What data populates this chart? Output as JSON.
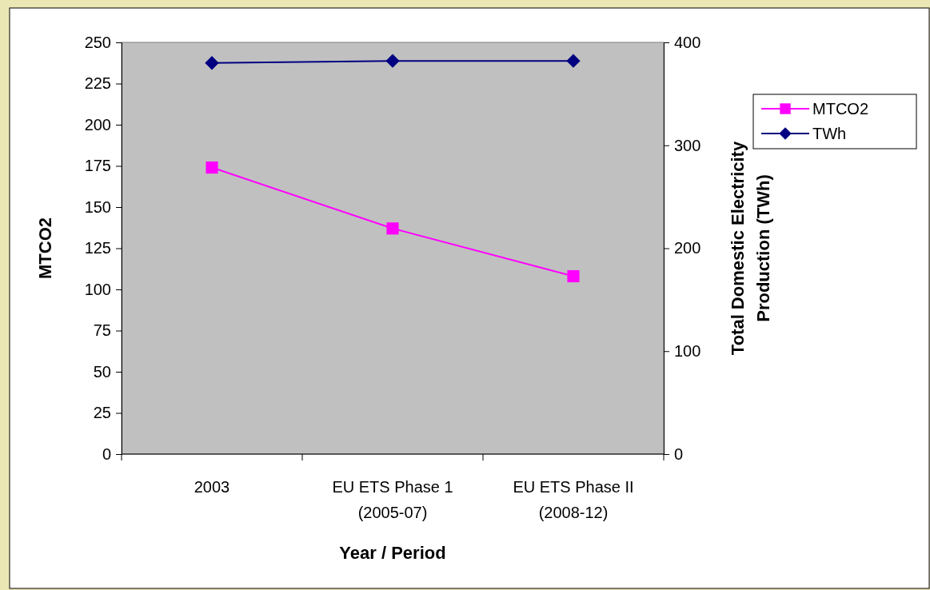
{
  "chart_data": {
    "type": "line",
    "xlabel": "Year / Period",
    "ylabel": "MTCO2",
    "y2label": "Total Domestic Electricity Production (TWh)",
    "categories": [
      "2003",
      "EU ETS Phase 1 (2005-07)",
      "EU ETS Phase II (2008-12)"
    ],
    "series": [
      {
        "name": "MTCO2",
        "color": "#ff00ff",
        "marker": "square",
        "values": [
          174,
          137,
          108
        ]
      },
      {
        "name": "TWh",
        "color": "#000080",
        "marker": "diamond",
        "axis": "y2",
        "values": [
          380,
          382,
          382
        ]
      }
    ],
    "ylim": [
      0,
      250
    ],
    "yticks": [
      0,
      25,
      50,
      75,
      100,
      125,
      150,
      175,
      200,
      225,
      250
    ],
    "y2lim": [
      0,
      400
    ],
    "y2ticks": [
      0,
      100,
      200,
      300,
      400
    ],
    "legend": "right",
    "grid": false
  }
}
